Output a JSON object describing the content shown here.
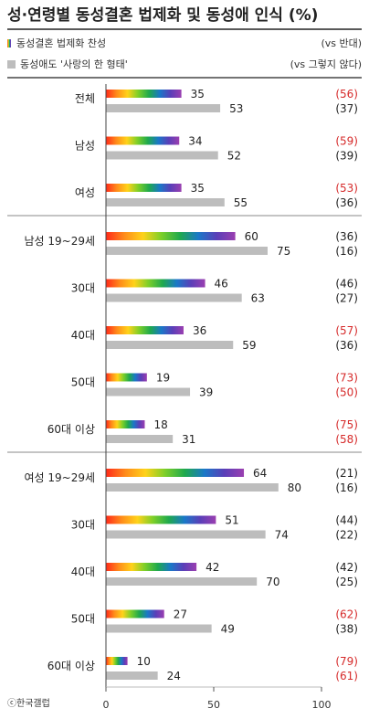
{
  "title": "성·연령별 동성결혼 법제화 및 동성애 인식 (%)",
  "legend": [
    {
      "label": "동성결혼 법제화 찬성",
      "note": "(vs 반대)",
      "style": "rainbow"
    },
    {
      "label": "동성애도 '사랑의 한 형태'",
      "note": "(vs 그렇지 않다)",
      "style": "gray"
    }
  ],
  "source": "ⓒ한국갤럽",
  "colors": {
    "gray": "#bdbdbd",
    "red": "#d62b2b",
    "text": "#222222",
    "rainbow": [
      "#ff2a1a",
      "#ff8c1a",
      "#ffd21a",
      "#7ccf29",
      "#1fa94d",
      "#1a78c8",
      "#5a3fb8",
      "#9b3fb0"
    ]
  },
  "chart_data": {
    "type": "bar",
    "orientation": "horizontal",
    "xlim": [
      0,
      100
    ],
    "xticks": [
      "0",
      "50",
      "100"
    ],
    "series": [
      {
        "name": "동성결혼 법제화 찬성",
        "compare_name": "(vs 반대)"
      },
      {
        "name": "동성애도 '사랑의 한 형태'",
        "compare_name": "(vs 그렇지 않다)"
      }
    ],
    "groups": [
      {
        "rows": [
          {
            "label": "전체",
            "support": 35,
            "love": 53,
            "oppose": "(56)",
            "not": "(37)",
            "oppose_red": true,
            "not_red": false
          },
          {
            "label": "남성",
            "support": 34,
            "love": 52,
            "oppose": "(59)",
            "not": "(39)",
            "oppose_red": true,
            "not_red": false
          },
          {
            "label": "여성",
            "support": 35,
            "love": 55,
            "oppose": "(53)",
            "not": "(36)",
            "oppose_red": true,
            "not_red": false
          }
        ]
      },
      {
        "rows": [
          {
            "label": "남성 19~29세",
            "support": 60,
            "love": 75,
            "oppose": "(36)",
            "not": "(16)",
            "oppose_red": false,
            "not_red": false
          },
          {
            "label": "30대",
            "support": 46,
            "love": 63,
            "oppose": "(46)",
            "not": "(27)",
            "oppose_red": false,
            "not_red": false
          },
          {
            "label": "40대",
            "support": 36,
            "love": 59,
            "oppose": "(57)",
            "not": "(36)",
            "oppose_red": true,
            "not_red": false
          },
          {
            "label": "50대",
            "support": 19,
            "love": 39,
            "oppose": "(73)",
            "not": "(50)",
            "oppose_red": true,
            "not_red": true
          },
          {
            "label": "60대 이상",
            "support": 18,
            "love": 31,
            "oppose": "(75)",
            "not": "(58)",
            "oppose_red": true,
            "not_red": true
          }
        ]
      },
      {
        "rows": [
          {
            "label": "여성 19~29세",
            "support": 64,
            "love": 80,
            "oppose": "(21)",
            "not": "(16)",
            "oppose_red": false,
            "not_red": false
          },
          {
            "label": "30대",
            "support": 51,
            "love": 74,
            "oppose": "(44)",
            "not": "(22)",
            "oppose_red": false,
            "not_red": false
          },
          {
            "label": "40대",
            "support": 42,
            "love": 70,
            "oppose": "(42)",
            "not": "(25)",
            "oppose_red": false,
            "not_red": false
          },
          {
            "label": "50대",
            "support": 27,
            "love": 49,
            "oppose": "(62)",
            "not": "(38)",
            "oppose_red": true,
            "not_red": false
          },
          {
            "label": "60대 이상",
            "support": 10,
            "love": 24,
            "oppose": "(79)",
            "not": "(61)",
            "oppose_red": true,
            "not_red": true
          }
        ]
      }
    ]
  }
}
